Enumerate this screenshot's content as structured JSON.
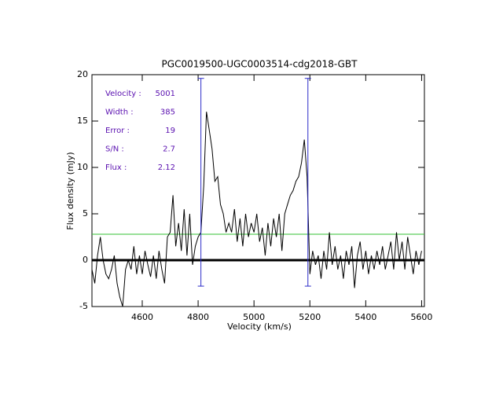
{
  "chart_data": {
    "type": "line",
    "title": "PGC0019500-UGC0003514-cdg2018-GBT",
    "xlabel": "Velocity (km/s)",
    "ylabel": "Flux density (mJy)",
    "xlim": [
      4420,
      5610
    ],
    "ylim": [
      -5,
      20
    ],
    "xticks": [
      4600,
      4800,
      5000,
      5200,
      5400,
      5600
    ],
    "yticks": [
      -5,
      0,
      5,
      10,
      15,
      20
    ],
    "x": [
      4420,
      4430,
      4440,
      4450,
      4460,
      4470,
      4480,
      4490,
      4500,
      4510,
      4520,
      4530,
      4540,
      4550,
      4560,
      4570,
      4580,
      4590,
      4600,
      4610,
      4620,
      4630,
      4640,
      4650,
      4660,
      4670,
      4680,
      4690,
      4700,
      4710,
      4720,
      4730,
      4740,
      4750,
      4760,
      4770,
      4780,
      4790,
      4800,
      4810,
      4820,
      4830,
      4840,
      4850,
      4860,
      4870,
      4880,
      4890,
      4900,
      4910,
      4920,
      4930,
      4940,
      4950,
      4960,
      4970,
      4980,
      4990,
      5000,
      5010,
      5020,
      5030,
      5040,
      5050,
      5060,
      5070,
      5080,
      5090,
      5100,
      5110,
      5120,
      5130,
      5140,
      5150,
      5160,
      5170,
      5180,
      5190,
      5200,
      5210,
      5220,
      5230,
      5240,
      5250,
      5260,
      5270,
      5280,
      5290,
      5300,
      5310,
      5320,
      5330,
      5340,
      5350,
      5360,
      5370,
      5380,
      5390,
      5400,
      5410,
      5420,
      5430,
      5440,
      5450,
      5460,
      5470,
      5480,
      5490,
      5500,
      5510,
      5520,
      5530,
      5540,
      5550,
      5560,
      5570,
      5580,
      5590,
      5600
    ],
    "series": [
      {
        "name": "Spectrum",
        "color": "#000000",
        "values": [
          -1,
          -2.5,
          0.5,
          2.5,
          0,
          -1.5,
          -2,
          -1,
          0.5,
          -2.5,
          -4,
          -5,
          -1,
          0,
          -1,
          1.5,
          -1.5,
          0.5,
          -1.5,
          1,
          -0.5,
          -1.8,
          0.5,
          -2,
          1,
          -1,
          -2.5,
          2.5,
          3,
          7,
          1.5,
          4,
          1,
          5.5,
          0.5,
          5,
          -0.5,
          1.5,
          2.5,
          3,
          8,
          16,
          14,
          12,
          8.5,
          9,
          6,
          5,
          3,
          4,
          3,
          5.5,
          2,
          4.5,
          1.5,
          5,
          2.5,
          4,
          3,
          5,
          2,
          3.5,
          0.5,
          4,
          1.5,
          4.5,
          2.5,
          5,
          1,
          5,
          6,
          7,
          7.5,
          8.5,
          9,
          10.5,
          13,
          9,
          -1.5,
          1,
          -0.5,
          0.5,
          -2,
          1,
          -1,
          3,
          -0.5,
          1.5,
          -1,
          0.5,
          -2,
          1,
          -0.5,
          1.5,
          -3,
          0.5,
          2,
          -1,
          1,
          -1.5,
          0.5,
          -1,
          1,
          -0.5,
          1.5,
          -1,
          0.5,
          2,
          -1,
          3,
          0,
          2,
          -1,
          2.5,
          0.5,
          -1.5,
          1,
          -0.5,
          1
        ]
      }
    ],
    "zero_line_color": "#000000",
    "threshold": {
      "value": 2.8,
      "color": "#33c033"
    },
    "limits": {
      "color": "#2a2ac8",
      "x": [
        4810,
        5193
      ],
      "top": 19.6,
      "bottom": -2.8
    },
    "annotations": [
      {
        "label": "Velocity :",
        "value": 5001
      },
      {
        "label": "Width :",
        "value": 385
      },
      {
        "label": "Error :",
        "value": 19
      },
      {
        "label": "S/N :",
        "value": 2.7
      },
      {
        "label": "Flux :",
        "value": 2.12
      }
    ]
  }
}
